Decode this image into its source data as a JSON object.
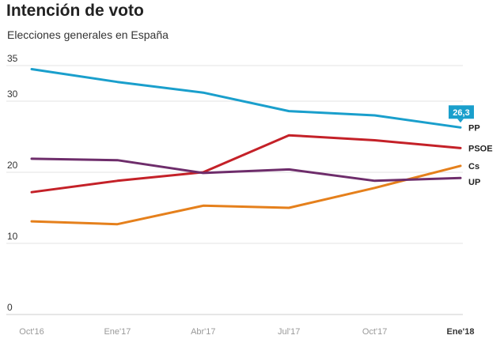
{
  "title": "Intención de voto",
  "subtitle": "Elecciones generales en España",
  "chart_data": {
    "type": "line",
    "title": "Intención de voto",
    "subtitle": "Elecciones generales en España",
    "xlabel": "",
    "ylabel": "",
    "categories": [
      "Oct'16",
      "Ene'17",
      "Abr'17",
      "Jul'17",
      "Oct'17",
      "Ene'18"
    ],
    "ylim": [
      0,
      35
    ],
    "yticks": [
      0,
      10,
      20,
      30,
      35
    ],
    "grid": true,
    "series": [
      {
        "name": "PP",
        "color": "#1a9fcc",
        "values": [
          34.5,
          32.7,
          31.2,
          28.6,
          28.0,
          26.3
        ]
      },
      {
        "name": "PSOE",
        "color": "#c42128",
        "values": [
          17.2,
          18.8,
          20.0,
          25.2,
          24.5,
          23.4
        ]
      },
      {
        "name": "Cs",
        "color": "#e5801c",
        "values": [
          13.1,
          12.7,
          15.3,
          15.0,
          17.8,
          20.9
        ]
      },
      {
        "name": "UP",
        "color": "#6e2d6b",
        "values": [
          21.9,
          21.7,
          19.9,
          20.4,
          18.8,
          19.2
        ]
      }
    ],
    "annotation": {
      "series": "PP",
      "label": "26,3"
    }
  }
}
